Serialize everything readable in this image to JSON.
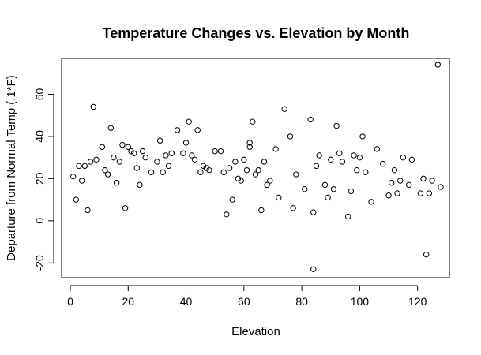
{
  "chart_data": {
    "type": "scatter",
    "title": "Temperature Changes vs. Elevation by Month",
    "xlabel": "Elevation",
    "ylabel": "Departure from Normal Temp (.1*F)",
    "xlim": [
      -3,
      131
    ],
    "ylim": [
      -27,
      77
    ],
    "xticks": [
      0,
      20,
      40,
      60,
      80,
      100,
      120
    ],
    "yticks": [
      -20,
      0,
      20,
      40,
      60
    ],
    "grid": false,
    "marker": "open-circle",
    "color": "#000000",
    "points": [
      {
        "x": 1,
        "y": 21
      },
      {
        "x": 2,
        "y": 10
      },
      {
        "x": 3,
        "y": 26
      },
      {
        "x": 4,
        "y": 19
      },
      {
        "x": 5,
        "y": 26
      },
      {
        "x": 6,
        "y": 5
      },
      {
        "x": 7,
        "y": 28
      },
      {
        "x": 8,
        "y": 54
      },
      {
        "x": 9,
        "y": 29
      },
      {
        "x": 11,
        "y": 35
      },
      {
        "x": 12,
        "y": 24
      },
      {
        "x": 13,
        "y": 22
      },
      {
        "x": 14,
        "y": 44
      },
      {
        "x": 15,
        "y": 30
      },
      {
        "x": 16,
        "y": 18
      },
      {
        "x": 17,
        "y": 28
      },
      {
        "x": 18,
        "y": 36
      },
      {
        "x": 19,
        "y": 6
      },
      {
        "x": 20,
        "y": 35
      },
      {
        "x": 21,
        "y": 33
      },
      {
        "x": 22,
        "y": 32
      },
      {
        "x": 23,
        "y": 25
      },
      {
        "x": 24,
        "y": 17
      },
      {
        "x": 25,
        "y": 33
      },
      {
        "x": 26,
        "y": 30
      },
      {
        "x": 28,
        "y": 23
      },
      {
        "x": 30,
        "y": 28
      },
      {
        "x": 31,
        "y": 38
      },
      {
        "x": 32,
        "y": 23
      },
      {
        "x": 33,
        "y": 31
      },
      {
        "x": 34,
        "y": 26
      },
      {
        "x": 35,
        "y": 32
      },
      {
        "x": 37,
        "y": 43
      },
      {
        "x": 39,
        "y": 32
      },
      {
        "x": 40,
        "y": 37
      },
      {
        "x": 41,
        "y": 47
      },
      {
        "x": 42,
        "y": 31
      },
      {
        "x": 43,
        "y": 29
      },
      {
        "x": 44,
        "y": 43
      },
      {
        "x": 45,
        "y": 23
      },
      {
        "x": 46,
        "y": 26
      },
      {
        "x": 47,
        "y": 25
      },
      {
        "x": 48,
        "y": 24
      },
      {
        "x": 50,
        "y": 33
      },
      {
        "x": 52,
        "y": 33
      },
      {
        "x": 53,
        "y": 23
      },
      {
        "x": 54,
        "y": 3
      },
      {
        "x": 55,
        "y": 25
      },
      {
        "x": 56,
        "y": 10
      },
      {
        "x": 57,
        "y": 28
      },
      {
        "x": 58,
        "y": 20
      },
      {
        "x": 59,
        "y": 19
      },
      {
        "x": 60,
        "y": 29
      },
      {
        "x": 61,
        "y": 24
      },
      {
        "x": 62,
        "y": 35
      },
      {
        "x": 62,
        "y": 37
      },
      {
        "x": 63,
        "y": 47
      },
      {
        "x": 64,
        "y": 22
      },
      {
        "x": 65,
        "y": 24
      },
      {
        "x": 66,
        "y": 5
      },
      {
        "x": 67,
        "y": 28
      },
      {
        "x": 68,
        "y": 17
      },
      {
        "x": 69,
        "y": 19
      },
      {
        "x": 71,
        "y": 34
      },
      {
        "x": 72,
        "y": 11
      },
      {
        "x": 74,
        "y": 53
      },
      {
        "x": 76,
        "y": 40
      },
      {
        "x": 77,
        "y": 6
      },
      {
        "x": 78,
        "y": 22
      },
      {
        "x": 81,
        "y": 15
      },
      {
        "x": 83,
        "y": 48
      },
      {
        "x": 84,
        "y": 4
      },
      {
        "x": 84,
        "y": -23
      },
      {
        "x": 85,
        "y": 26
      },
      {
        "x": 86,
        "y": 31
      },
      {
        "x": 88,
        "y": 17
      },
      {
        "x": 89,
        "y": 11
      },
      {
        "x": 90,
        "y": 29
      },
      {
        "x": 91,
        "y": 15
      },
      {
        "x": 92,
        "y": 45
      },
      {
        "x": 93,
        "y": 32
      },
      {
        "x": 94,
        "y": 28
      },
      {
        "x": 96,
        "y": 2
      },
      {
        "x": 97,
        "y": 14
      },
      {
        "x": 98,
        "y": 31
      },
      {
        "x": 99,
        "y": 24
      },
      {
        "x": 100,
        "y": 30
      },
      {
        "x": 101,
        "y": 40
      },
      {
        "x": 102,
        "y": 23
      },
      {
        "x": 104,
        "y": 9
      },
      {
        "x": 106,
        "y": 34
      },
      {
        "x": 108,
        "y": 27
      },
      {
        "x": 110,
        "y": 12
      },
      {
        "x": 111,
        "y": 18
      },
      {
        "x": 112,
        "y": 24
      },
      {
        "x": 113,
        "y": 13
      },
      {
        "x": 114,
        "y": 19
      },
      {
        "x": 115,
        "y": 30
      },
      {
        "x": 117,
        "y": 17
      },
      {
        "x": 118,
        "y": 29
      },
      {
        "x": 121,
        "y": 13
      },
      {
        "x": 122,
        "y": 20
      },
      {
        "x": 123,
        "y": -16
      },
      {
        "x": 124,
        "y": 13
      },
      {
        "x": 125,
        "y": 19
      },
      {
        "x": 127,
        "y": 74
      },
      {
        "x": 128,
        "y": 16
      }
    ]
  }
}
